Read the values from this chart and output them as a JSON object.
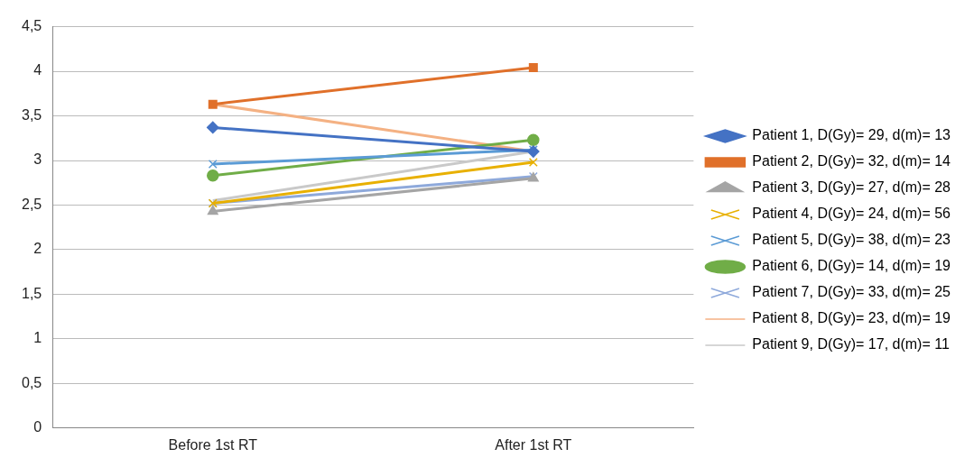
{
  "chart_data": {
    "type": "line",
    "categories": [
      "Before 1st RT",
      "After 1st RT"
    ],
    "ylim": [
      0,
      4.5
    ],
    "yticks": [
      0,
      {
        "value": 0.5,
        "label": "0,5"
      },
      1,
      {
        "value": 1.5,
        "label": "1,5"
      },
      2,
      {
        "value": 2.5,
        "label": "2,5"
      },
      3,
      {
        "value": 3.5,
        "label": "3,5"
      },
      4,
      {
        "value": 4.5,
        "label": "4,5"
      }
    ],
    "grid": "y",
    "legend": "right",
    "line_style": "solid",
    "series": [
      {
        "name": "Patient 1, D(Gy)= 29, d(m)= 13",
        "color": "#4472c4",
        "marker": "diamond",
        "values": [
          3.37,
          3.1
        ]
      },
      {
        "name": "Patient 2, D(Gy)= 32, d(m)= 14",
        "color": "#e0702a",
        "marker": "square",
        "values": [
          3.63,
          4.04
        ]
      },
      {
        "name": "Patient 3, D(Gy)= 27, d(m)= 28",
        "color": "#a5a5a5",
        "marker": "triangle",
        "values": [
          2.43,
          2.8
        ]
      },
      {
        "name": "Patient 4, D(Gy)= 24, d(m)= 56",
        "color": "#e8b000",
        "marker": "cross",
        "values": [
          2.52,
          2.98
        ]
      },
      {
        "name": "Patient 5, D(Gy)= 38, d(m)= 23",
        "color": "#5b9bd5",
        "marker": "cross",
        "values": [
          2.96,
          3.12
        ]
      },
      {
        "name": "Patient 6, D(Gy)= 14, d(m)= 19",
        "color": "#70ad47",
        "marker": "circle",
        "values": [
          2.83,
          3.23
        ]
      },
      {
        "name": "Patient 7, D(Gy)= 33, d(m)= 25",
        "color": "#8ea9db",
        "marker": "cross",
        "values": [
          2.52,
          2.82
        ]
      },
      {
        "name": "Patient 8, D(Gy)= 23, d(m)= 19",
        "color": "#f4b183",
        "marker": "none",
        "values": [
          3.63,
          3.1
        ]
      },
      {
        "name": "Patient 9, D(Gy)= 17, d(m)= 11",
        "color": "#c9c9c9",
        "marker": "none",
        "values": [
          2.55,
          3.1
        ]
      }
    ]
  }
}
